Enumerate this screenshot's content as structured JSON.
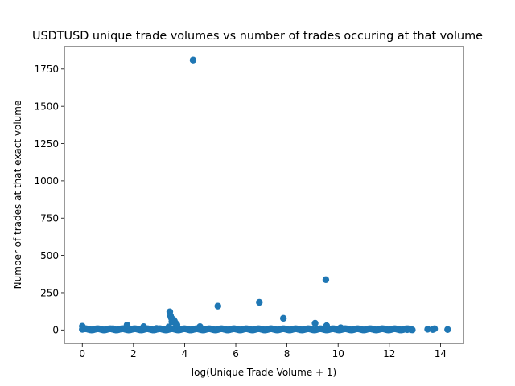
{
  "chart_data": {
    "type": "scatter",
    "title": "USDTUSD unique trade volumes vs number of trades occuring at that volume",
    "xlabel": "log(Unique Trade Volume + 1)",
    "ylabel": "Number of trades at that exact volume",
    "xlim": [
      -0.7,
      14.9
    ],
    "ylim": [
      -90,
      1900
    ],
    "xticks": [
      0,
      2,
      4,
      6,
      8,
      10,
      12,
      14
    ],
    "yticks": [
      0,
      250,
      500,
      750,
      1000,
      1250,
      1500,
      1750
    ],
    "grid": false,
    "marker_color": "#1f77b4",
    "points": [
      {
        "x": 4.33,
        "y": 1810
      },
      {
        "x": 9.52,
        "y": 337
      },
      {
        "x": 6.92,
        "y": 185
      },
      {
        "x": 5.3,
        "y": 160
      },
      {
        "x": 3.42,
        "y": 122
      },
      {
        "x": 3.45,
        "y": 95
      },
      {
        "x": 3.48,
        "y": 80
      },
      {
        "x": 7.86,
        "y": 78
      },
      {
        "x": 3.55,
        "y": 70
      },
      {
        "x": 3.6,
        "y": 60
      },
      {
        "x": 3.5,
        "y": 55
      },
      {
        "x": 3.65,
        "y": 45
      },
      {
        "x": 9.1,
        "y": 45
      },
      {
        "x": 3.7,
        "y": 35
      },
      {
        "x": 1.75,
        "y": 33
      },
      {
        "x": 9.55,
        "y": 28
      },
      {
        "x": 0.0,
        "y": 25
      },
      {
        "x": 2.4,
        "y": 22
      },
      {
        "x": 4.6,
        "y": 22
      },
      {
        "x": 3.38,
        "y": 20
      },
      {
        "x": 10.1,
        "y": 15
      },
      {
        "x": 0.05,
        "y": 12
      },
      {
        "x": 1.2,
        "y": 8
      },
      {
        "x": 2.9,
        "y": 10
      },
      {
        "x": 13.77,
        "y": 8
      },
      {
        "x": 13.5,
        "y": 5
      },
      {
        "x": 13.7,
        "y": 3
      },
      {
        "x": 14.28,
        "y": 3
      },
      {
        "x": 12.85,
        "y": 3
      },
      {
        "x": 12.7,
        "y": 2
      }
    ],
    "dense_band": {
      "x_from": 0.0,
      "x_to": 12.9,
      "y_from": 0,
      "y_to": 8
    }
  }
}
